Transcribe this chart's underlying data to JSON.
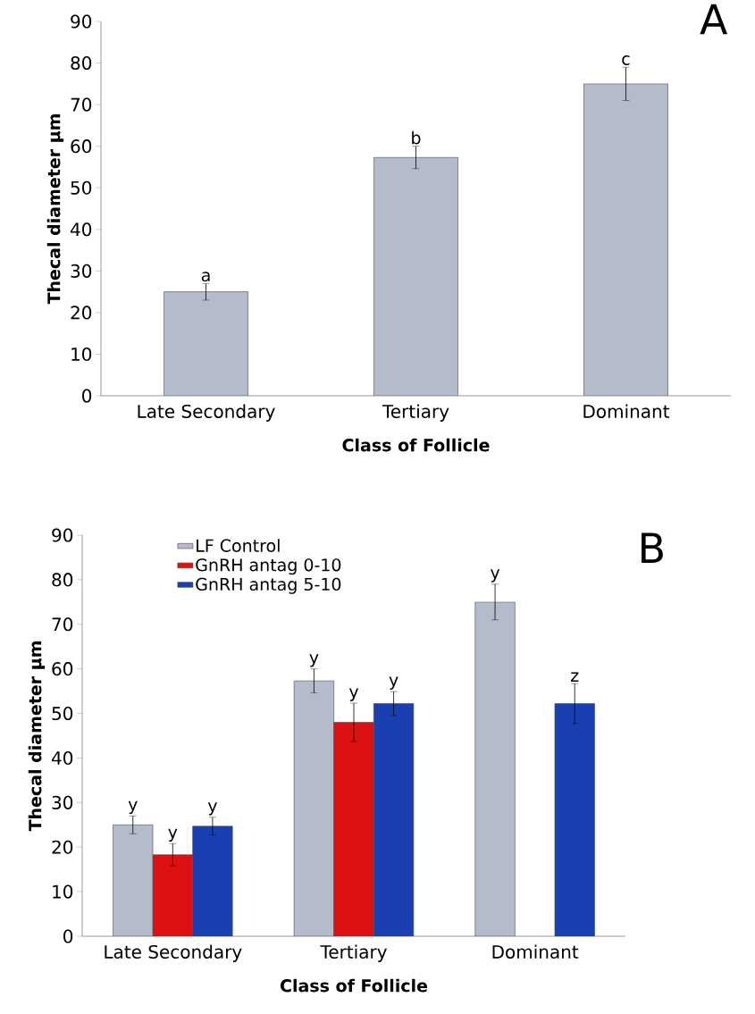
{
  "chart_data": [
    {
      "type": "bar",
      "title": "A",
      "xlabel": "Class of Follicle",
      "ylabel": "Thecal diameter  µm",
      "categories": [
        "Late Secondary",
        "Tertiary",
        "Dominant"
      ],
      "values": [
        25,
        57.3,
        75
      ],
      "errors": [
        2,
        2.7,
        4
      ],
      "color": "#b4bccc",
      "ylim": [
        0,
        90
      ],
      "yticks": [
        0,
        10,
        20,
        30,
        40,
        50,
        60,
        70,
        80,
        90
      ],
      "grid": false,
      "legend": false,
      "annotations": [
        "a",
        "b",
        "c"
      ]
    },
    {
      "type": "bar",
      "title": "B",
      "xlabel": "Class of Follicle",
      "ylabel": "Thecal diameter  µm",
      "categories": [
        "Late Secondary",
        "Tertiary",
        "Dominant"
      ],
      "series": [
        {
          "name": "LF Control",
          "color": "#b4bccc",
          "values": [
            25,
            57.3,
            75
          ],
          "errors": [
            2,
            2.7,
            4
          ]
        },
        {
          "name": "GnRH antag 0-10",
          "color": "#dd1111",
          "values": [
            18.3,
            48,
            null
          ],
          "errors": [
            2.5,
            4.3,
            null
          ]
        },
        {
          "name": "GnRH antag 5-10",
          "color": "#1a3fb0",
          "values": [
            24.7,
            52.2,
            52.2
          ],
          "errors": [
            2,
            2.7,
            4.5
          ]
        }
      ],
      "ylim": [
        0,
        90
      ],
      "yticks": [
        0,
        10,
        20,
        30,
        40,
        50,
        60,
        70,
        80,
        90
      ],
      "grid": false,
      "legend": "top left",
      "annotations": [
        "y",
        "y",
        "y",
        "y",
        "y",
        "y",
        "y",
        "z"
      ]
    }
  ]
}
